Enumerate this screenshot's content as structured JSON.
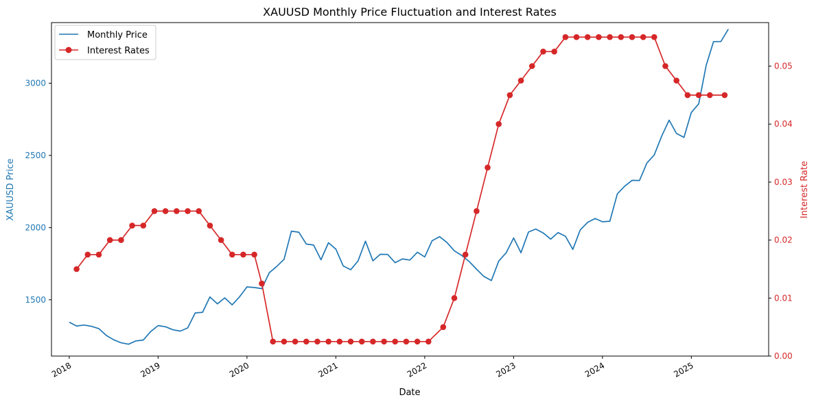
{
  "chart_data": {
    "type": "line",
    "title": "XAUUSD Monthly Price Fluctuation and Interest Rates",
    "xlabel": "Date",
    "ylabel_left": "XAUUSD Price",
    "ylabel_right": "Interest Rate",
    "x_ticks": [
      "2018",
      "2019",
      "2020",
      "2021",
      "2022",
      "2023",
      "2024",
      "2025"
    ],
    "y_left_ticks": [
      1500,
      2000,
      2500,
      3000
    ],
    "y_right_ticks": [
      "0.00",
      "0.01",
      "0.02",
      "0.03",
      "0.04",
      "0.05"
    ],
    "xlim": [
      2017.8,
      2025.87
    ],
    "ylim_left": [
      1110,
      3420
    ],
    "ylim_right": [
      0,
      0.0575
    ],
    "legend_position": "top-left",
    "grid": false,
    "series": [
      {
        "name": "Monthly Price",
        "axis": "left",
        "color": "#1f77b4",
        "x": [
          2018.0,
          2018.083,
          2018.167,
          2018.25,
          2018.333,
          2018.417,
          2018.5,
          2018.583,
          2018.667,
          2018.75,
          2018.833,
          2018.917,
          2019.0,
          2019.083,
          2019.167,
          2019.25,
          2019.333,
          2019.417,
          2019.5,
          2019.583,
          2019.667,
          2019.75,
          2019.833,
          2019.917,
          2020.0,
          2020.083,
          2020.167,
          2020.25,
          2020.333,
          2020.417,
          2020.5,
          2020.583,
          2020.667,
          2020.75,
          2020.833,
          2020.917,
          2021.0,
          2021.083,
          2021.167,
          2021.25,
          2021.333,
          2021.417,
          2021.5,
          2021.583,
          2021.667,
          2021.75,
          2021.833,
          2021.917,
          2022.0,
          2022.083,
          2022.167,
          2022.25,
          2022.333,
          2022.417,
          2022.5,
          2022.583,
          2022.667,
          2022.75,
          2022.833,
          2022.917,
          2023.0,
          2023.083,
          2023.167,
          2023.25,
          2023.333,
          2023.417,
          2023.5,
          2023.583,
          2023.667,
          2023.75,
          2023.833,
          2023.917,
          2024.0,
          2024.083,
          2024.167,
          2024.25,
          2024.333,
          2024.417,
          2024.5,
          2024.583,
          2024.667,
          2024.75,
          2024.833,
          2024.917,
          2025.0,
          2025.083,
          2025.167,
          2025.25,
          2025.333,
          2025.417
        ],
        "values": [
          1345,
          1318,
          1325,
          1316,
          1300,
          1253,
          1223,
          1202,
          1192,
          1215,
          1221,
          1280,
          1321,
          1313,
          1292,
          1283,
          1305,
          1409,
          1413,
          1520,
          1472,
          1513,
          1465,
          1521,
          1589,
          1585,
          1577,
          1687,
          1730,
          1780,
          1975,
          1968,
          1886,
          1879,
          1777,
          1895,
          1851,
          1734,
          1708,
          1769,
          1906,
          1770,
          1815,
          1814,
          1757,
          1783,
          1775,
          1829,
          1797,
          1909,
          1937,
          1897,
          1839,
          1807,
          1765,
          1712,
          1661,
          1633,
          1768,
          1826,
          1928,
          1826,
          1969,
          1990,
          1963,
          1920,
          1965,
          1940,
          1849,
          1984,
          2036,
          2063,
          2040,
          2044,
          2233,
          2287,
          2327,
          2326,
          2447,
          2503,
          2634,
          2744,
          2652,
          2625,
          2797,
          2857,
          3124,
          3288,
          3289,
          3375
        ]
      },
      {
        "name": "Interest Rates",
        "axis": "right",
        "color": "#d62728",
        "x": [
          2018.083,
          2018.208,
          2018.333,
          2018.458,
          2018.583,
          2018.708,
          2018.833,
          2018.958,
          2019.083,
          2019.208,
          2019.333,
          2019.458,
          2019.583,
          2019.708,
          2019.833,
          2019.958,
          2020.083,
          2020.167,
          2020.292,
          2020.417,
          2020.542,
          2020.667,
          2020.792,
          2020.917,
          2021.042,
          2021.167,
          2021.292,
          2021.417,
          2021.542,
          2021.667,
          2021.792,
          2021.917,
          2022.042,
          2022.208,
          2022.333,
          2022.458,
          2022.583,
          2022.708,
          2022.833,
          2022.958,
          2023.083,
          2023.208,
          2023.333,
          2023.458,
          2023.583,
          2023.708,
          2023.833,
          2023.958,
          2024.083,
          2024.208,
          2024.333,
          2024.458,
          2024.583,
          2024.708,
          2024.833,
          2024.958,
          2025.083,
          2025.208,
          2025.375
        ],
        "values": [
          0.015,
          0.0175,
          0.0175,
          0.02,
          0.02,
          0.0225,
          0.0225,
          0.025,
          0.025,
          0.025,
          0.025,
          0.025,
          0.0225,
          0.02,
          0.0175,
          0.0175,
          0.0175,
          0.0125,
          0.0025,
          0.0025,
          0.0025,
          0.0025,
          0.0025,
          0.0025,
          0.0025,
          0.0025,
          0.0025,
          0.0025,
          0.0025,
          0.0025,
          0.0025,
          0.0025,
          0.0025,
          0.005,
          0.01,
          0.0175,
          0.025,
          0.0325,
          0.04,
          0.045,
          0.0475,
          0.05,
          0.0525,
          0.0525,
          0.055,
          0.055,
          0.055,
          0.055,
          0.055,
          0.055,
          0.055,
          0.055,
          0.055,
          0.05,
          0.0475,
          0.045,
          0.045,
          0.045,
          0.045
        ]
      }
    ]
  },
  "colors": {
    "left_axis": "#1f77b4",
    "right_axis": "#d62728",
    "axis_line": "#000000"
  }
}
